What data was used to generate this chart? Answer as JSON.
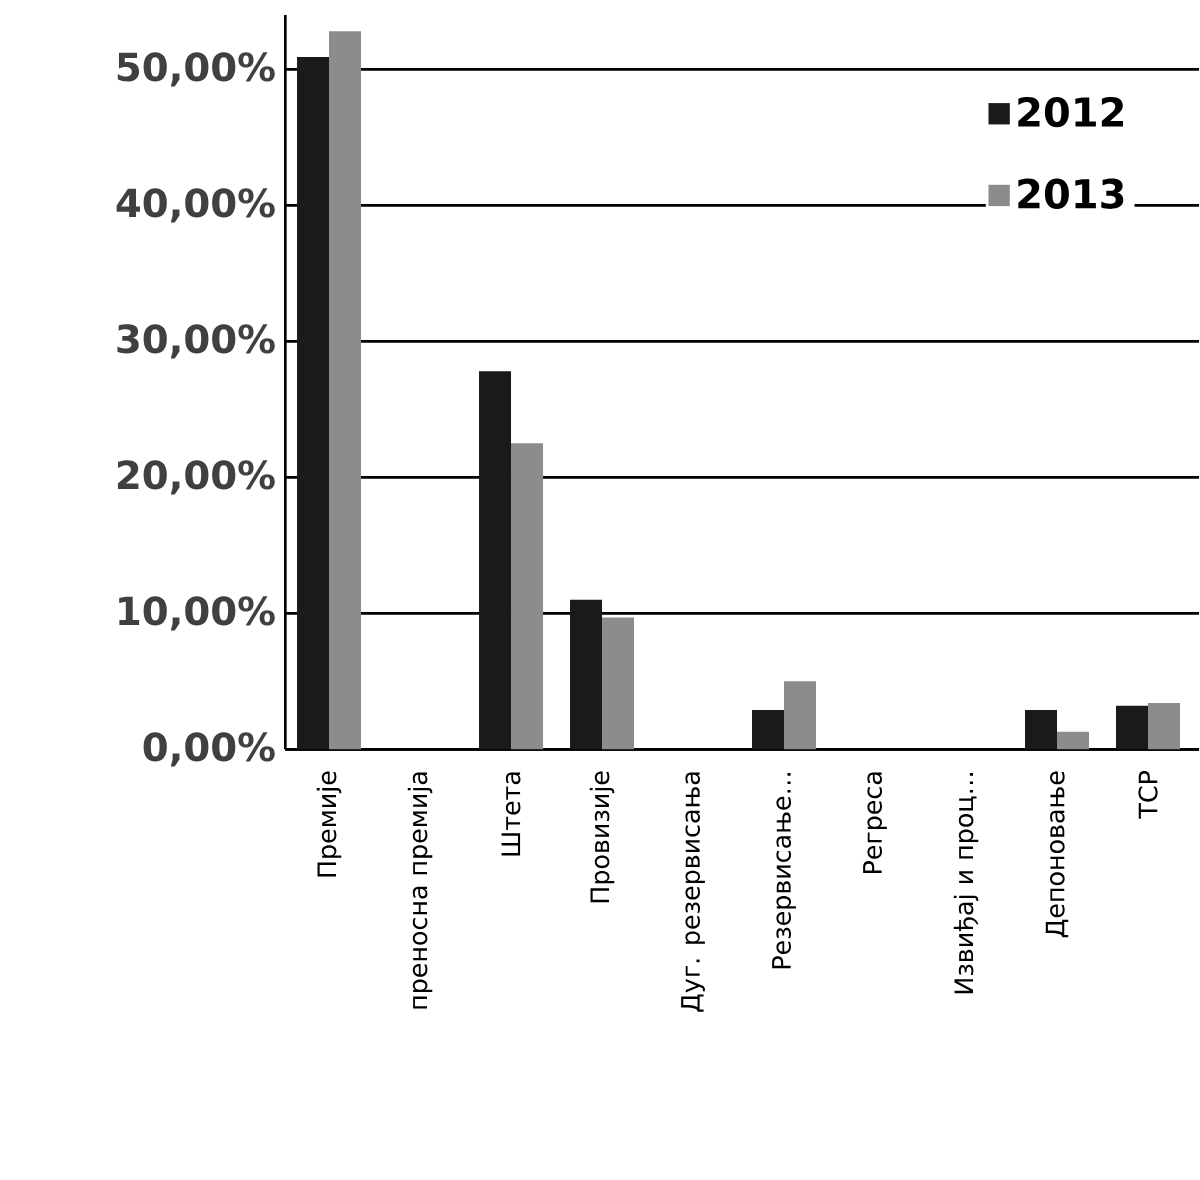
{
  "chart_data": {
    "type": "bar",
    "categories": [
      "Премије",
      "преносна премија",
      "Штета",
      "Провизије",
      "Дуг. резервисања",
      "Резервисање…",
      "Регреса",
      "Извиђај и проц…",
      "Депоновање",
      "ТСР"
    ],
    "series": [
      {
        "name": "2012",
        "color": "#1a1a1a",
        "values": [
          50.9,
          0,
          27.8,
          11.0,
          0,
          2.9,
          0,
          0,
          2.9,
          3.2
        ]
      },
      {
        "name": "2013",
        "color": "#8c8c8c",
        "values": [
          52.8,
          0,
          22.5,
          9.7,
          0,
          5.0,
          0,
          0,
          1.3,
          3.4
        ]
      }
    ],
    "ylim": [
      0,
      54
    ],
    "yticks": [
      {
        "value": 0,
        "label": "0,00%"
      },
      {
        "value": 10,
        "label": "10,00%"
      },
      {
        "value": 20,
        "label": "20,00%"
      },
      {
        "value": 30,
        "label": "30,00%"
      },
      {
        "value": 40,
        "label": "40,00%"
      },
      {
        "value": 50,
        "label": "50,00%"
      }
    ],
    "grid": "y",
    "legend": "top right"
  }
}
